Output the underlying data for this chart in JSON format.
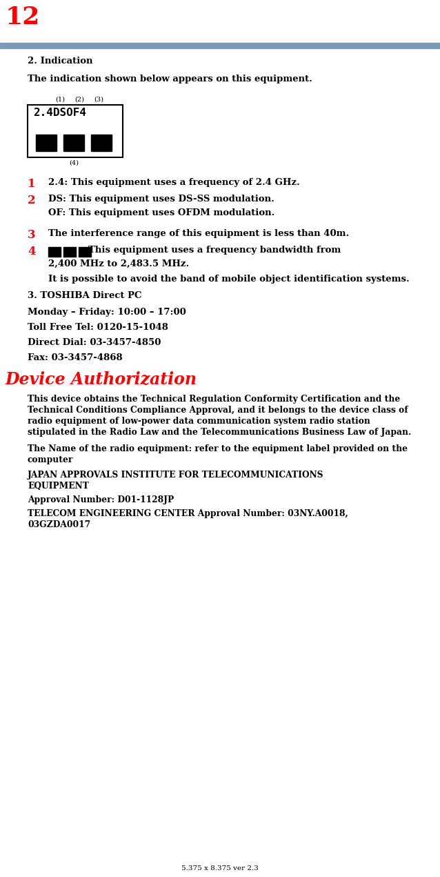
{
  "page_number": "12",
  "page_number_color": "#ff0000",
  "header_bar_color": "#7a9ab5",
  "footer_text": "5.375 x 8.375 ver 2.3",
  "section2_title": "2. Indication",
  "indication_text": "The indication shown below appears on this equipment.",
  "box_label_text": "2.4DSOF4",
  "label_1_text": "2.4: This equipment uses a frequency of 2.4 GHz.",
  "label_2a_text": "DS: This equipment uses DS-SS modulation.",
  "label_2b_text": "OF: This equipment uses OFDM modulation.",
  "label_3_text": "The interference range of this equipment is less than 40m.",
  "label_4a_text": "This equipment uses a frequency bandwidth from",
  "label_4b_text": "2,400 MHz to 2,483.5 MHz.",
  "label_4c_text": "It is possible to avoid the band of mobile object identification systems.",
  "section3_title": "3. TOSHIBA Direct PC",
  "monday_friday": "Monday – Friday: 10:00 – 17:00",
  "toll_free": "Toll Free Tel: 0120-15-1048",
  "direct_dial": "Direct Dial: 03-3457-4850",
  "fax": "Fax: 03-3457-4868",
  "device_auth_title": "Device Authorization",
  "device_auth_color": "#ff0000",
  "device_auth_body1": "This device obtains the Technical Regulation Conformity Certification and the",
  "device_auth_body2": "Technical Conditions Compliance Approval, and it belongs to the device class of",
  "device_auth_body3": "radio equipment of low-power data communication system radio station",
  "device_auth_body4": "stipulated in the Radio Law and the Telecommunications Business Law of Japan.",
  "device_auth_name1": "The Name of the radio equipment: refer to the equipment label provided on the",
  "device_auth_name2": "computer",
  "japan_approvals1": "JAPAN APPROVALS INSTITUTE FOR TELECOMMUNICATIONS",
  "japan_approvals2": "EQUIPMENT",
  "approval_number": "Approval Number: D01-1128JP",
  "telecom_engineering1": "TELECOM ENGINEERING CENTER Approval Number: 03NY.A0018,",
  "telecom_engineering2": "03GZDA0017",
  "red_color": "#ff0000",
  "black_color": "#000000",
  "bg_color": "#ffffff"
}
